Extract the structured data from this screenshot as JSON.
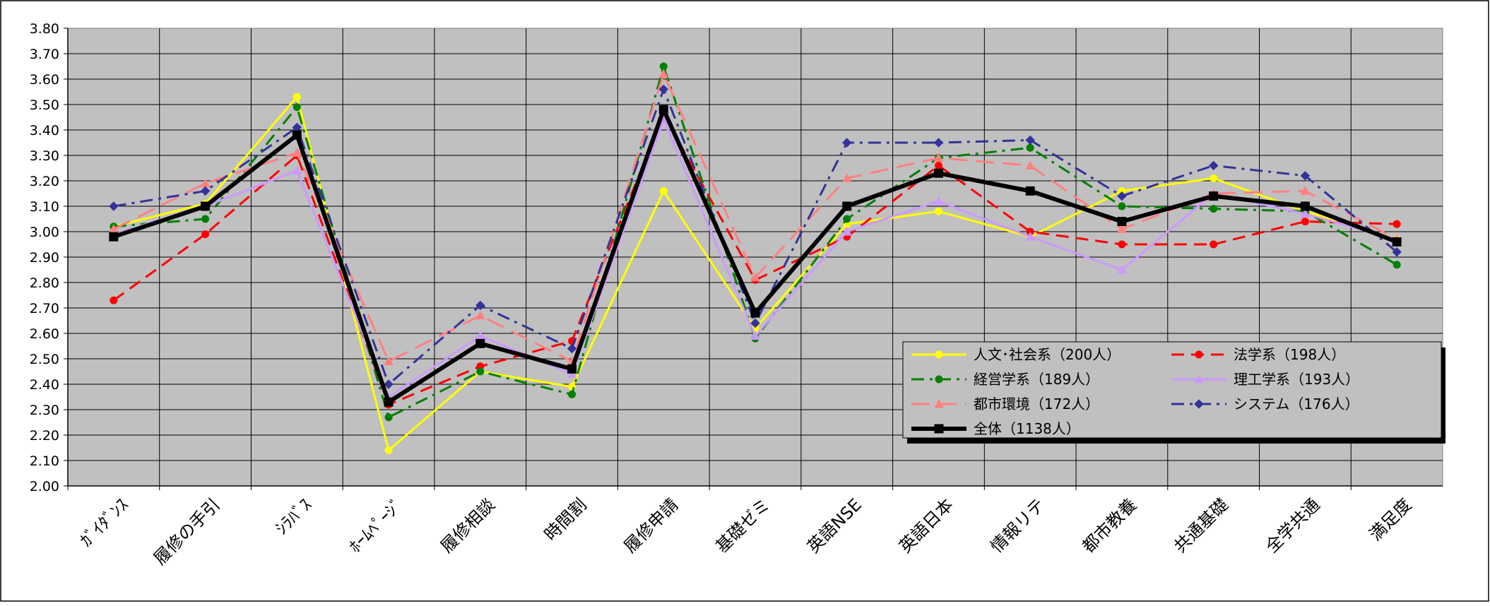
{
  "chart_data": {
    "type": "line",
    "title": "",
    "xlabel": "",
    "ylabel": "",
    "ylim": [
      2.0,
      3.8
    ],
    "y_ticks": [
      "2.00",
      "2.10",
      "2.20",
      "2.30",
      "2.40",
      "2.50",
      "2.60",
      "2.70",
      "2.80",
      "2.90",
      "3.00",
      "3.10",
      "3.20",
      "3.30",
      "3.40",
      "3.50",
      "3.60",
      "3.70",
      "3.80"
    ],
    "grid": true,
    "legend_position": "bottom-right",
    "plot_background": "#c0c0c0",
    "categories": [
      "ｶﾞｲﾀﾞﾝｽ",
      "履修の手引",
      "ｼﾗﾊﾞｽ",
      "ﾎｰﾑﾍﾟｰｼﾞ",
      "履修相談",
      "時間割",
      "履修申請",
      "基礎ゼミ",
      "英語NSE",
      "英語日本",
      "情報リテ",
      "都市教養",
      "共通基礎",
      "全学共通",
      "満足度"
    ],
    "series": [
      {
        "name": "人文･社会系（200人）",
        "color": "#ffff00",
        "marker": "circle",
        "dash": "solid",
        "width": 3,
        "values": [
          3.02,
          3.11,
          3.53,
          2.14,
          2.45,
          2.39,
          3.16,
          2.62,
          3.03,
          3.08,
          2.98,
          3.16,
          3.21,
          3.08,
          2.97
        ]
      },
      {
        "name": "法学系（198人）",
        "color": "#ff0000",
        "marker": "circle",
        "dash": "dash",
        "width": 3,
        "values": [
          2.73,
          2.99,
          3.3,
          2.32,
          2.47,
          2.57,
          3.46,
          2.81,
          2.98,
          3.26,
          3.0,
          2.95,
          2.95,
          3.04,
          3.03
        ]
      },
      {
        "name": "経営学系（189人）",
        "color": "#008000",
        "marker": "circle",
        "dash": "dashdot",
        "width": 3,
        "values": [
          3.02,
          3.05,
          3.49,
          2.27,
          2.45,
          2.36,
          3.65,
          2.58,
          3.05,
          3.29,
          3.33,
          3.1,
          3.09,
          3.08,
          2.87
        ]
      },
      {
        "name": "理工学系（193人）",
        "color": "#cc99ff",
        "marker": "triangle",
        "dash": "solid",
        "width": 3,
        "values": [
          2.99,
          3.1,
          3.24,
          2.35,
          2.59,
          2.44,
          3.44,
          2.59,
          3.0,
          3.12,
          2.98,
          2.85,
          3.15,
          3.07,
          2.97
        ]
      },
      {
        "name": "都市環境（172人）",
        "color": "#ff8080",
        "marker": "triangle",
        "dash": "longdash",
        "width": 3,
        "values": [
          3.01,
          3.19,
          3.31,
          2.49,
          2.67,
          2.49,
          3.62,
          2.82,
          3.21,
          3.29,
          3.26,
          3.01,
          3.15,
          3.16,
          2.97
        ]
      },
      {
        "name": "システム（176人）",
        "color": "#333399",
        "marker": "diamond",
        "dash": "dashdot",
        "width": 3,
        "values": [
          3.1,
          3.16,
          3.41,
          2.4,
          2.71,
          2.54,
          3.56,
          2.64,
          3.35,
          3.35,
          3.36,
          3.14,
          3.26,
          3.22,
          2.92
        ]
      },
      {
        "name": "全体（1138人）",
        "color": "#000000",
        "marker": "square",
        "dash": "solid",
        "width": 6,
        "values": [
          2.98,
          3.1,
          3.38,
          2.33,
          2.56,
          2.46,
          3.48,
          2.68,
          3.1,
          3.23,
          3.16,
          3.04,
          3.14,
          3.1,
          2.96
        ]
      }
    ]
  }
}
